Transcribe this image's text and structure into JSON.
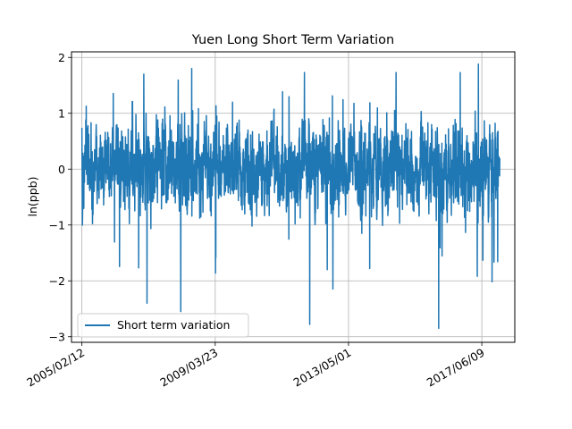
{
  "chart_data": {
    "type": "line",
    "title": "Yuen Long Short Term Variation",
    "xlabel": "",
    "ylabel": "ln(ppb)",
    "x_start": "2005/02/12",
    "x_end": "2017/12/28",
    "xlim": [
      "2004/10/18",
      "2018/06/15"
    ],
    "ylim": [
      -3.1,
      2.1
    ],
    "xticks": [
      "2005/02/12",
      "2009/03/23",
      "2013/05/01",
      "2017/06/09"
    ],
    "yticks": [
      -3,
      -2,
      -1,
      0,
      1,
      2
    ],
    "grid": true,
    "legend": {
      "position": "lower-left"
    },
    "series": [
      {
        "name": "Short term variation",
        "color": "#1f77b4",
        "approx_mean": 0.0,
        "approx_min": -2.85,
        "approx_max": 1.88,
        "extremes": [
          {
            "date": "2016/02/10",
            "value": -2.85
          },
          {
            "date": "2012/02/20",
            "value": -2.78
          },
          {
            "date": "2008/03/01",
            "value": -2.55
          },
          {
            "date": "2007/02/15",
            "value": -2.4
          },
          {
            "date": "2017/05/01",
            "value": 1.88
          },
          {
            "date": "2007/01/10",
            "value": 1.7
          },
          {
            "date": "2008/07/01",
            "value": 1.8
          }
        ]
      }
    ]
  }
}
